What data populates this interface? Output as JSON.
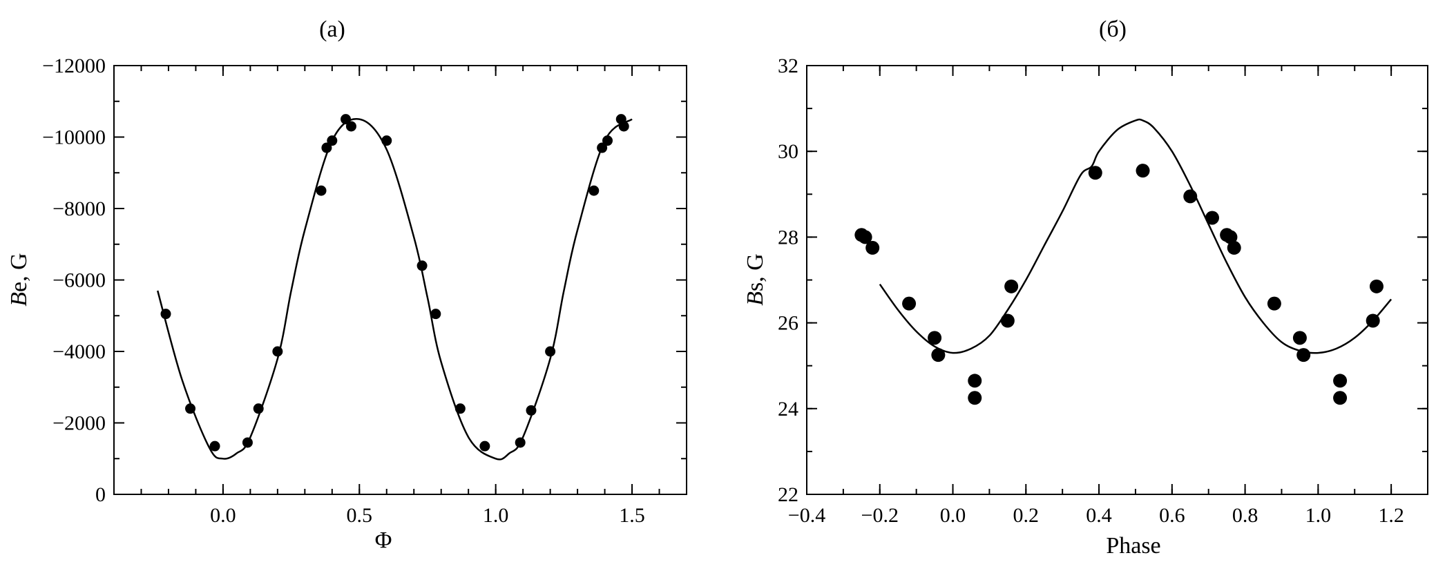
{
  "colors": {
    "ink": "#000000",
    "background": "#ffffff"
  },
  "chart_data": [
    {
      "type": "scatter",
      "title": "(а)",
      "xlabel": "Φ",
      "ylabel_italic": "B",
      "ylabel_rest": "e, G",
      "xlim": [
        -0.4,
        1.7
      ],
      "ylim": [
        0,
        -12000
      ],
      "y_inverted": true,
      "grid": false,
      "legend": "none",
      "x_ticks": [
        0.0,
        0.5,
        1.0,
        1.5
      ],
      "x_tick_labels": [
        "0.0",
        "0.5",
        "1.0",
        "1.5"
      ],
      "y_ticks": [
        0,
        -2000,
        -4000,
        -6000,
        -8000,
        -10000,
        -12000
      ],
      "y_tick_labels": [
        "0",
        "−2000",
        "−4000",
        "−6000",
        "−8000",
        "−10000",
        "−12000"
      ],
      "series": [
        {
          "kind": "points",
          "marker": "filled-circle",
          "x": [
            -0.21,
            -0.12,
            -0.03,
            0.09,
            0.13,
            0.2,
            0.36,
            0.38,
            0.4,
            0.45,
            0.47,
            0.6,
            0.73,
            0.78,
            0.87,
            0.96,
            1.09,
            1.13,
            1.2,
            1.36,
            1.39,
            1.41,
            1.46,
            1.47
          ],
          "y": [
            -5050,
            -2400,
            -1350,
            -1450,
            -2400,
            -4000,
            -8500,
            -9700,
            -9900,
            -10500,
            -10300,
            -9900,
            -6400,
            -5050,
            -2400,
            -1350,
            -1450,
            -2350,
            -4000,
            -8500,
            -9700,
            -9900,
            -10500,
            -10300
          ]
        },
        {
          "kind": "curve",
          "x": [
            -0.24,
            -0.15,
            -0.05,
            0.0,
            0.05,
            0.1,
            0.2,
            0.25,
            0.3,
            0.4,
            0.5,
            0.6,
            0.7,
            0.75,
            0.8,
            0.9,
            1.0,
            1.05,
            1.1,
            1.2,
            1.25,
            1.3,
            1.4,
            1.5
          ],
          "y": [
            -5700,
            -3200,
            -1300,
            -1000,
            -1150,
            -1600,
            -3800,
            -5700,
            -7400,
            -9900,
            -10500,
            -9650,
            -7200,
            -5500,
            -3700,
            -1600,
            -1000,
            -1150,
            -1600,
            -3800,
            -5700,
            -7400,
            -9900,
            -10500
          ]
        }
      ]
    },
    {
      "type": "scatter",
      "title": "(б)",
      "xlabel": "Phase",
      "ylabel_italic": "B",
      "ylabel_rest": "s, G",
      "xlim": [
        -0.4,
        1.3
      ],
      "ylim": [
        22,
        32
      ],
      "grid": false,
      "legend": "none",
      "x_ticks": [
        -0.4,
        -0.2,
        0.0,
        0.2,
        0.4,
        0.6,
        0.8,
        1.0,
        1.2
      ],
      "x_tick_labels": [
        "−0.4",
        "−0.2",
        "0.0",
        "0.2",
        "0.4",
        "0.6",
        "0.8",
        "1.0",
        "1.2"
      ],
      "y_ticks": [
        22,
        24,
        26,
        28,
        30,
        32
      ],
      "y_tick_labels": [
        "22",
        "24",
        "26",
        "28",
        "30",
        "32"
      ],
      "series": [
        {
          "kind": "points",
          "marker": "filled-circle",
          "x": [
            -0.25,
            -0.24,
            -0.22,
            -0.12,
            -0.05,
            -0.04,
            0.06,
            0.06,
            0.15,
            0.16,
            0.39,
            0.52,
            0.65,
            0.71,
            0.75,
            0.76,
            0.77,
            0.88,
            0.95,
            0.96,
            1.06,
            1.06,
            1.15,
            1.16
          ],
          "y": [
            28.05,
            28.0,
            27.75,
            26.45,
            25.65,
            25.25,
            24.65,
            24.25,
            26.05,
            26.85,
            29.5,
            29.55,
            28.95,
            28.45,
            28.05,
            28.0,
            27.75,
            26.45,
            25.65,
            25.25,
            24.65,
            24.25,
            26.05,
            26.85
          ]
        },
        {
          "kind": "curve",
          "x": [
            -0.2,
            -0.15,
            -0.1,
            -0.05,
            0.0,
            0.05,
            0.1,
            0.15,
            0.2,
            0.25,
            0.3,
            0.35,
            0.38,
            0.4,
            0.45,
            0.5,
            0.52,
            0.55,
            0.6,
            0.65,
            0.7,
            0.75,
            0.8,
            0.85,
            0.9,
            0.95,
            1.0,
            1.05,
            1.1,
            1.15,
            1.2
          ],
          "y": [
            26.9,
            26.3,
            25.8,
            25.45,
            25.3,
            25.4,
            25.7,
            26.3,
            27.0,
            27.8,
            28.6,
            29.45,
            29.65,
            30.0,
            30.5,
            30.72,
            30.72,
            30.55,
            30.0,
            29.2,
            28.3,
            27.4,
            26.6,
            26.0,
            25.55,
            25.35,
            25.3,
            25.4,
            25.65,
            26.05,
            26.55
          ]
        }
      ]
    }
  ]
}
